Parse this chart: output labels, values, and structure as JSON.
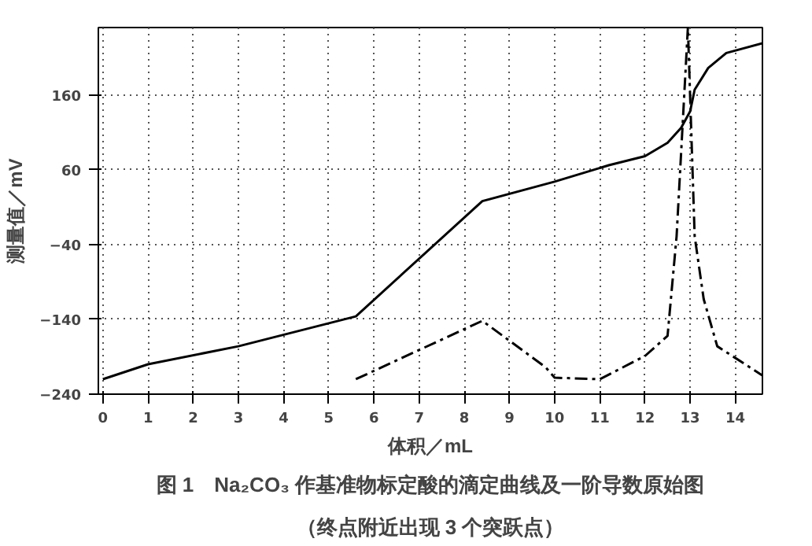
{
  "chart_data": {
    "type": "line",
    "title": "图 1　Na₂CO₃ 作基准物标定酸的滴定曲线及一阶导数原始图",
    "subtitle": "（终点附近出现 3 个突跃点）",
    "xlabel": "体积／mL",
    "ylabel": "测量值／mV",
    "xlim": [
      -0.1,
      14.6
    ],
    "ylim": [
      -240,
      250
    ],
    "xticks": [
      0,
      1,
      2,
      3,
      4,
      5,
      6,
      7,
      8,
      9,
      10,
      11,
      12,
      13,
      14
    ],
    "yticks": [
      -240,
      -140,
      -40,
      60,
      160
    ],
    "grid": true,
    "marker": "none",
    "series": [
      {
        "color": "#000000",
        "line_style": "solid",
        "x": [
          0,
          1,
          3,
          5.6,
          8.4,
          10,
          11.2,
          12,
          12.5,
          12.8,
          13,
          13.1,
          13.4,
          13.8,
          14.6
        ],
        "values": [
          -220,
          -200,
          -176,
          -136,
          18,
          44,
          66,
          78,
          96,
          116,
          138,
          167,
          196,
          216,
          229
        ]
      },
      {
        "color": "#000000",
        "line_style": "dashed",
        "x": [
          5.6,
          8.4,
          9.8,
          10,
          11,
          12,
          12.5,
          12.7,
          12.95,
          13.1,
          13.3,
          13.6,
          14.6
        ],
        "values": [
          -220,
          -142,
          -204,
          -218,
          -220,
          -189,
          -162,
          -29,
          250,
          -29,
          -113,
          -176,
          -215
        ]
      }
    ]
  }
}
